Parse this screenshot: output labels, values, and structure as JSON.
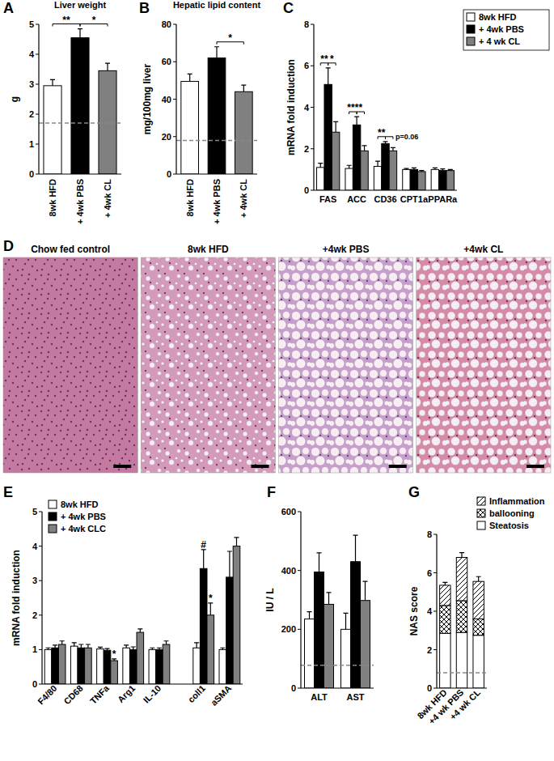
{
  "chart_data": [
    {
      "panel": "A",
      "type": "bar",
      "title": "Liver weight",
      "y_label": "g",
      "categories": [
        "8wk HFD",
        "+ 4wk PBS",
        "+ 4wk CL"
      ],
      "values": [
        2.95,
        4.55,
        3.45
      ],
      "errors": [
        0.2,
        0.3,
        0.25
      ],
      "colors": [
        "#ffffff",
        "#000000",
        "#808080"
      ],
      "reference_line": 1.7,
      "ylim": [
        0,
        5
      ],
      "yticks": [
        0,
        1,
        2,
        3,
        4,
        5
      ],
      "annotations": [
        {
          "text": "**",
          "between": [
            0,
            1
          ]
        },
        {
          "text": "*",
          "between": [
            1,
            2
          ]
        }
      ]
    },
    {
      "panel": "B",
      "type": "bar",
      "title": "Hepatic lipid content",
      "y_label": "mg/100mg liver",
      "categories": [
        "8wk HFD",
        "+ 4wk PBS",
        "+ 4wk CL"
      ],
      "values": [
        49.5,
        62,
        44
      ],
      "errors": [
        4,
        6,
        3.5
      ],
      "colors": [
        "#ffffff",
        "#000000",
        "#808080"
      ],
      "reference_line": 18,
      "ylim": [
        0,
        80
      ],
      "yticks": [
        0,
        20,
        40,
        60,
        80
      ],
      "annotations": [
        {
          "text": "*",
          "between": [
            1,
            2
          ]
        }
      ]
    },
    {
      "panel": "C",
      "type": "bar",
      "y_label": "mRNA fold induction",
      "categories": [
        "FAS",
        "ACC",
        "CD36",
        "CPT1a",
        "PPARa"
      ],
      "series": [
        {
          "name": "8wk HFD",
          "color": "#ffffff",
          "values": [
            1.1,
            1.05,
            1.15,
            1.0,
            1.0
          ],
          "errors": [
            0.2,
            0.15,
            0.25,
            0.05,
            0.08
          ]
        },
        {
          "name": "+ 4wk PBS",
          "color": "#000000",
          "values": [
            5.1,
            3.15,
            2.25,
            1.0,
            0.95
          ],
          "errors": [
            0.8,
            0.4,
            0.1,
            0.08,
            0.08
          ]
        },
        {
          "name": "+ 4 wk CL",
          "color": "#808080",
          "values": [
            2.8,
            1.9,
            1.9,
            0.9,
            0.95
          ],
          "errors": [
            0.5,
            0.25,
            0.15,
            0.05,
            0.05
          ]
        }
      ],
      "ylim": [
        0,
        8
      ],
      "yticks": [
        0,
        2,
        4,
        6,
        8
      ],
      "legend": "right",
      "annotations": [
        {
          "text": "**",
          "category": 0,
          "series": [
            0,
            1
          ]
        },
        {
          "text": "*",
          "category": 0,
          "series": [
            1,
            2
          ]
        },
        {
          "text": "***",
          "category": 1,
          "series": [
            0,
            1
          ]
        },
        {
          "text": "*",
          "category": 1,
          "series": [
            1,
            2
          ]
        },
        {
          "text": "**",
          "category": 2,
          "series": [
            0,
            1
          ]
        },
        {
          "text": "p=0.06",
          "category": 2,
          "series": [
            1,
            2
          ]
        }
      ]
    },
    {
      "panel": "E",
      "type": "bar",
      "y_label": "mRNA fold induction",
      "categories": [
        "F4/80",
        "CD68",
        "TNFa",
        "Arg1",
        "IL-10",
        "coll1",
        "aSMA"
      ],
      "series": [
        {
          "name": "8wk HFD",
          "color": "#ffffff",
          "values": [
            1.0,
            1.1,
            1.02,
            1.05,
            1.0,
            1.05,
            1.0
          ],
          "errors": [
            0.05,
            0.1,
            0.05,
            0.08,
            0.05,
            0.15,
            0.05
          ]
        },
        {
          "name": "+ 4wk PBS",
          "color": "#000000",
          "values": [
            1.05,
            1.05,
            0.98,
            1.0,
            1.0,
            3.35,
            3.1
          ],
          "errors": [
            0.08,
            0.1,
            0.05,
            0.08,
            0.05,
            0.55,
            0.75
          ]
        },
        {
          "name": "+ 4wk CLC",
          "color": "#808080",
          "values": [
            1.15,
            1.05,
            0.68,
            1.5,
            1.15,
            2.0,
            4.0
          ],
          "errors": [
            0.1,
            0.1,
            0.05,
            0.1,
            0.1,
            0.35,
            0.25
          ]
        }
      ],
      "ylim": [
        0,
        5
      ],
      "yticks": [
        0,
        1,
        2,
        3,
        4,
        5
      ],
      "legend": "top-left",
      "annotations": [
        {
          "text": "*",
          "category": 2,
          "series": 2
        },
        {
          "text": "#",
          "category": 5,
          "series": 1
        },
        {
          "text": "*",
          "category": 5,
          "series": 2
        }
      ]
    },
    {
      "panel": "F",
      "type": "bar",
      "y_label": "IU / L",
      "categories": [
        "ALT",
        "AST"
      ],
      "series": [
        {
          "color": "#ffffff",
          "values": [
            235,
            200
          ],
          "errors": [
            25,
            55
          ]
        },
        {
          "color": "#000000",
          "values": [
            395,
            430
          ],
          "errors": [
            65,
            90
          ]
        },
        {
          "color": "#808080",
          "values": [
            285,
            298
          ],
          "errors": [
            40,
            65
          ]
        }
      ],
      "reference_line": 78,
      "ylim": [
        0,
        600
      ],
      "yticks": [
        0,
        200,
        400,
        600
      ]
    },
    {
      "panel": "G",
      "type": "bar",
      "stacked": true,
      "y_label": "NAS score",
      "categories": [
        "8wk HFD",
        "+4 wk PBS",
        "+4 wk CL"
      ],
      "series": [
        {
          "name": "Steatosis",
          "color": "#ffffff",
          "values": [
            2.85,
            2.9,
            2.75
          ],
          "errors": [
            0.15,
            0.1,
            0.15
          ]
        },
        {
          "name": "ballooning",
          "color": "#ffffff",
          "values": [
            1.45,
            1.65,
            0.85
          ],
          "errors": [
            0.2,
            0.15,
            0.2
          ]
        },
        {
          "name": "Inflammation",
          "color": "#ffffff",
          "values": [
            1.05,
            2.25,
            1.95
          ],
          "errors": [
            0.15,
            0.25,
            0.25
          ]
        }
      ],
      "reference_line": 0.8,
      "ylim": [
        0,
        8
      ],
      "yticks": [
        0,
        2,
        4,
        6,
        8
      ],
      "legend": "top-right"
    }
  ],
  "images": {
    "panel": "D",
    "titles": [
      "Chow fed control",
      "8wk HFD",
      "+4wk PBS",
      "+4wk CL"
    ]
  }
}
